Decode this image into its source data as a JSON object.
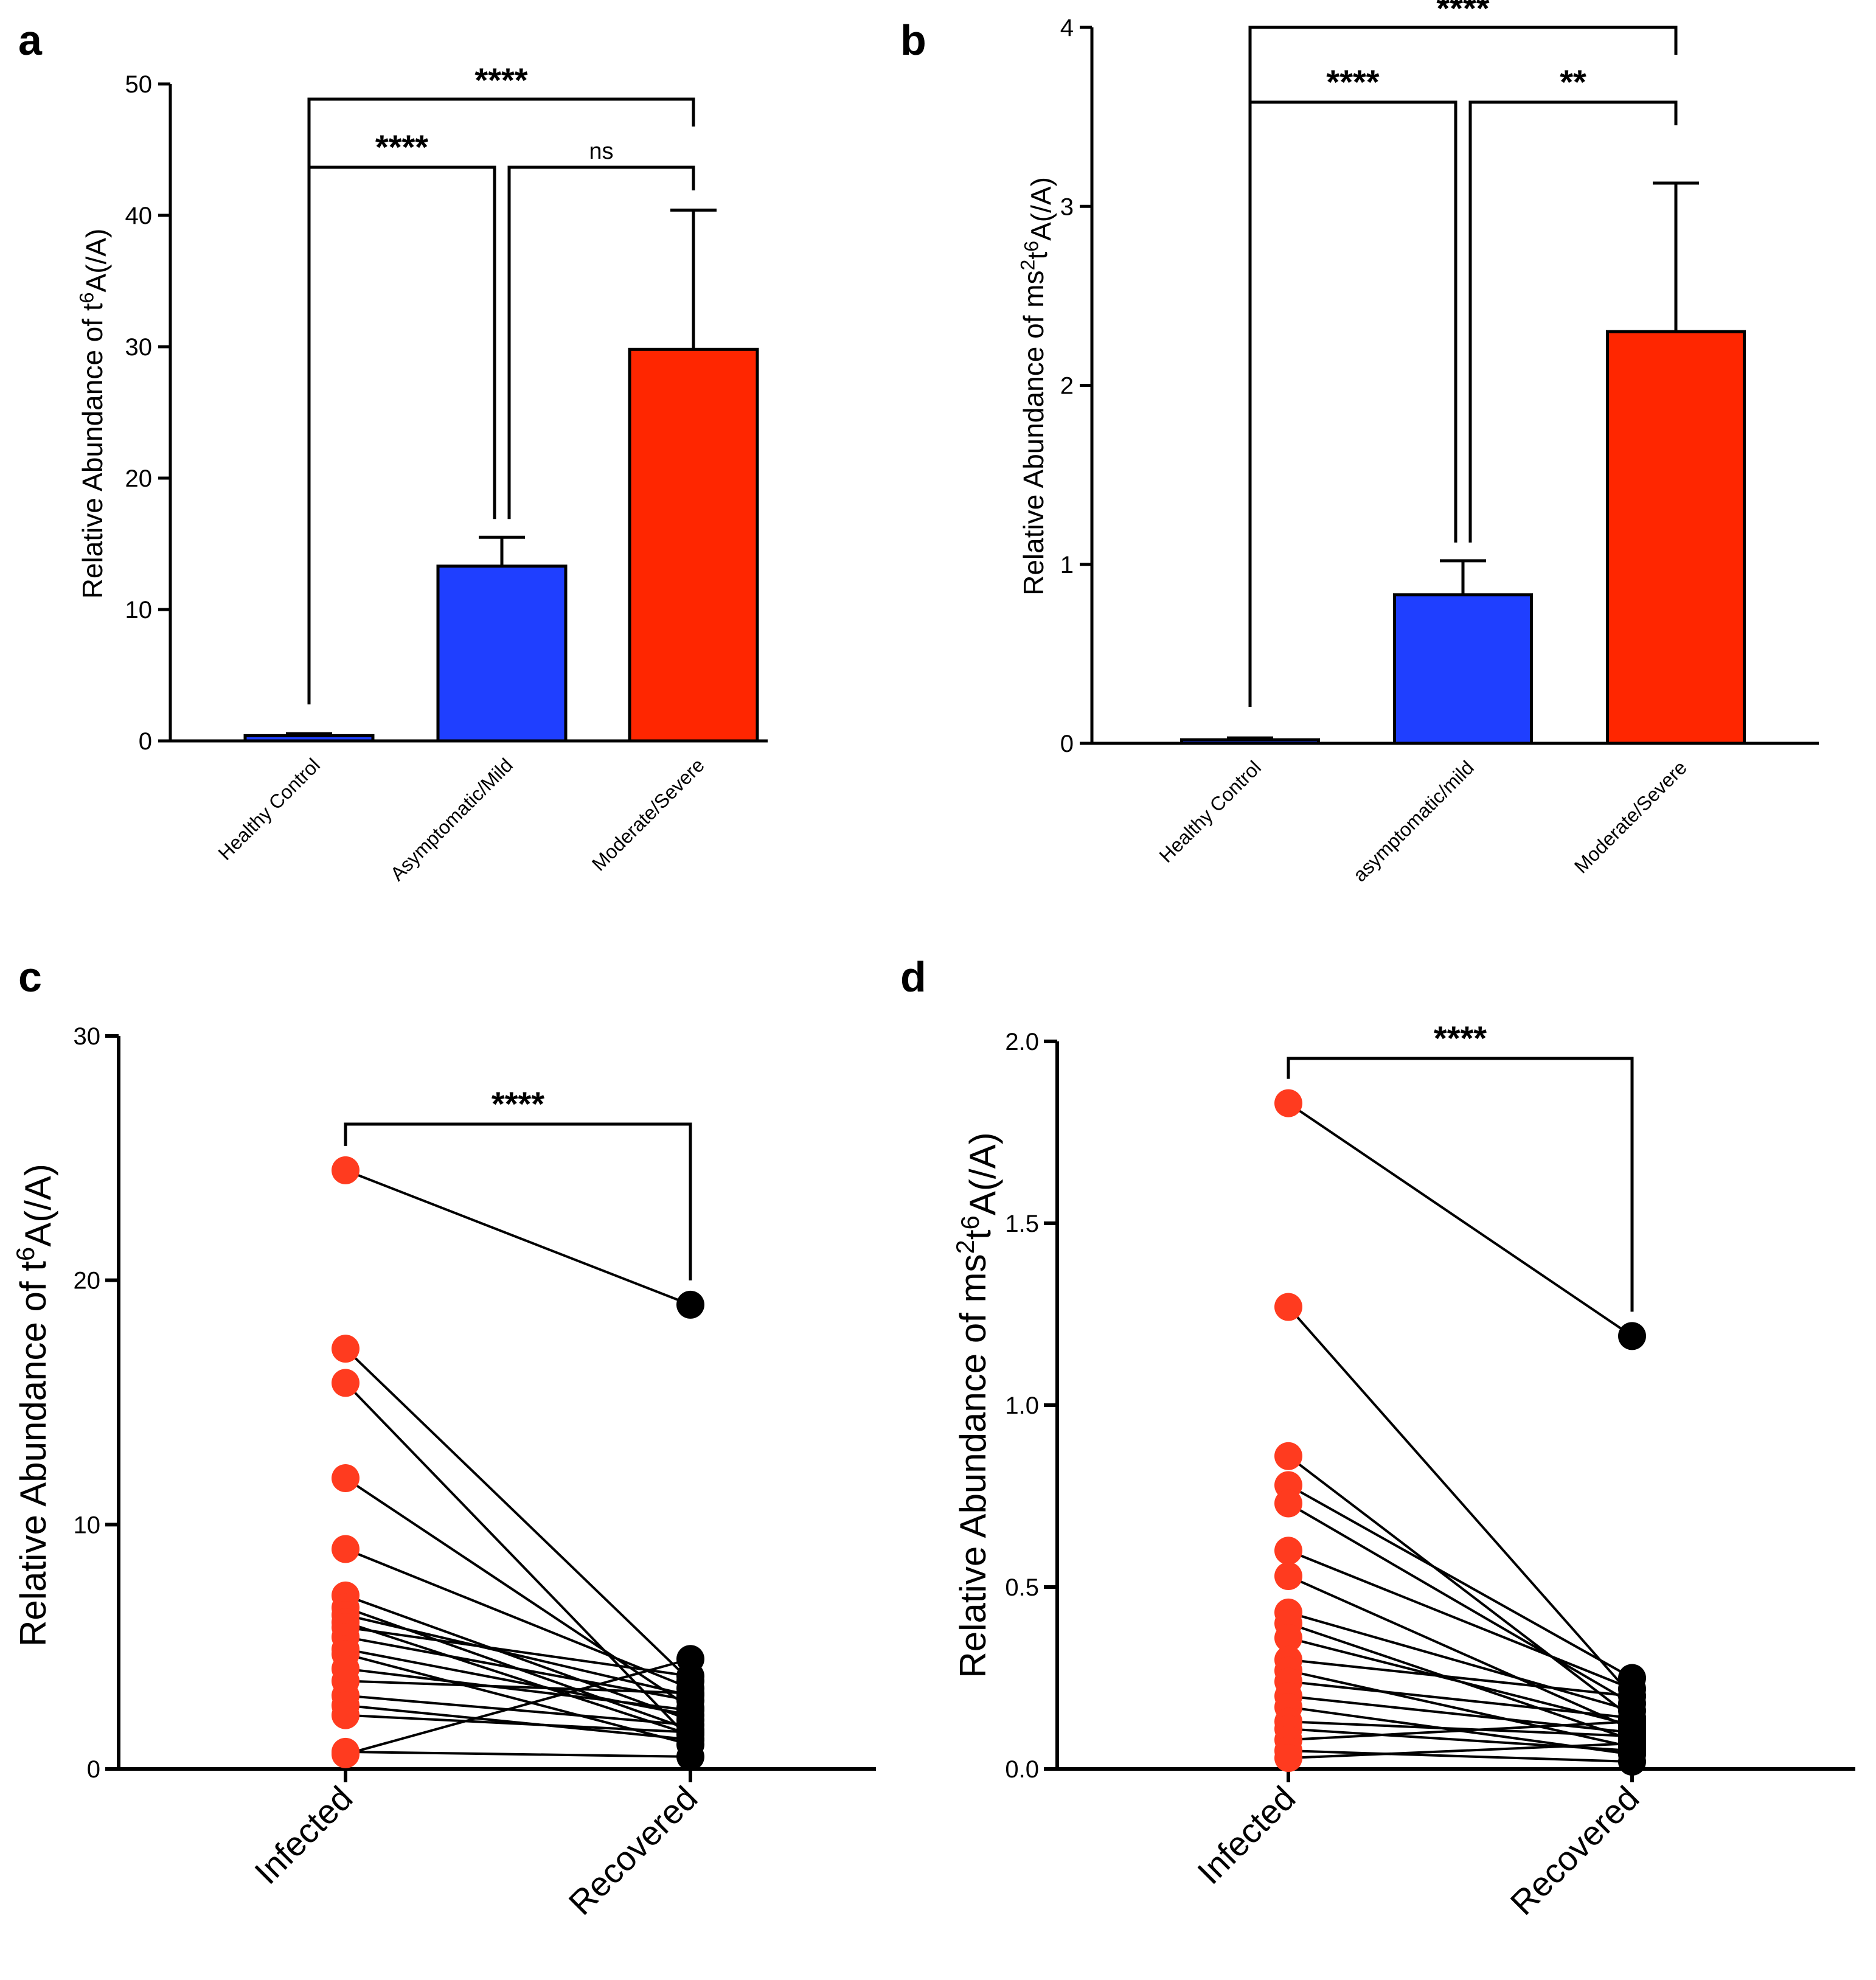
{
  "chart_data": [
    {
      "panel": "a",
      "type": "bar",
      "categories": [
        "Healthy Control",
        "Asymptomatic/Mild",
        "Moderate/Severe"
      ],
      "values": [
        0.4,
        13.3,
        29.8
      ],
      "errors": [
        0.15,
        2.2,
        10.6
      ],
      "colors": [
        "#1f3fff",
        "#1f3fff",
        "#ff2600"
      ],
      "ylabel": {
        "pre": "Relative  Abundance of t",
        "sup": "6",
        "post": "A(/A)"
      },
      "ylim": [
        0,
        50
      ],
      "yticks": [
        "0",
        "10",
        "20",
        "30",
        "40",
        "50"
      ],
      "comparisons": [
        {
          "from": 0,
          "to": 2,
          "label": "****"
        },
        {
          "from": 0,
          "to": 1,
          "label": "****"
        },
        {
          "from": 1,
          "to": 2,
          "label": "ns"
        }
      ]
    },
    {
      "panel": "b",
      "type": "bar",
      "categories": [
        "Healthy Control",
        "asymptomatic/mild",
        "Moderate/Severe"
      ],
      "values": [
        0.02,
        0.83,
        2.3
      ],
      "errors": [
        0.01,
        0.19,
        0.83
      ],
      "colors": [
        "#1f3fff",
        "#1f3fff",
        "#ff2600"
      ],
      "ylabel": {
        "pre": "Relative  Abundance of ms",
        "sup": "2",
        "mid": "t",
        "sup2": "6",
        "post": "A(/A)"
      },
      "ylim": [
        0,
        4
      ],
      "yticks": [
        "0",
        "1",
        "2",
        "3",
        "4"
      ],
      "comparisons": [
        {
          "from": 0,
          "to": 2,
          "label": "****"
        },
        {
          "from": 0,
          "to": 1,
          "label": "****"
        },
        {
          "from": 1,
          "to": 2,
          "label": "**"
        }
      ]
    },
    {
      "panel": "c",
      "type": "scatter",
      "categories": [
        "Infected",
        "Recovered"
      ],
      "pairs": [
        [
          24.5,
          19.0
        ],
        [
          17.2,
          3.6
        ],
        [
          15.8,
          1.2
        ],
        [
          11.9,
          2.5
        ],
        [
          9.0,
          3.3
        ],
        [
          7.1,
          2.0
        ],
        [
          6.6,
          1.6
        ],
        [
          6.3,
          3.0
        ],
        [
          6.0,
          1.4
        ],
        [
          5.8,
          3.8
        ],
        [
          5.4,
          2.8
        ],
        [
          4.9,
          2.2
        ],
        [
          4.7,
          1.0
        ],
        [
          4.1,
          2.4
        ],
        [
          3.6,
          3.1
        ],
        [
          3.0,
          1.8
        ],
        [
          2.6,
          1.2
        ],
        [
          2.2,
          1.5
        ],
        [
          0.7,
          0.5
        ],
        [
          0.6,
          4.5
        ]
      ],
      "infected_color": "#ff3b1f",
      "recovered_color": "#000000",
      "ylabel": {
        "pre": "Relative  Abundance of t",
        "sup": "6",
        "post": "A(/A)"
      },
      "ylim": [
        0,
        30
      ],
      "yticks": [
        "0",
        "10",
        "20",
        "30"
      ],
      "comparison": {
        "label": "****"
      }
    },
    {
      "panel": "d",
      "type": "scatter",
      "categories": [
        "Infected",
        "Recovered"
      ],
      "pairs": [
        [
          1.83,
          1.19
        ],
        [
          1.27,
          0.2
        ],
        [
          0.86,
          0.14
        ],
        [
          0.78,
          0.25
        ],
        [
          0.73,
          0.18
        ],
        [
          0.6,
          0.22
        ],
        [
          0.53,
          0.11
        ],
        [
          0.43,
          0.16
        ],
        [
          0.4,
          0.08
        ],
        [
          0.36,
          0.12
        ],
        [
          0.3,
          0.2
        ],
        [
          0.27,
          0.06
        ],
        [
          0.24,
          0.14
        ],
        [
          0.2,
          0.1
        ],
        [
          0.17,
          0.04
        ],
        [
          0.13,
          0.09
        ],
        [
          0.11,
          0.05
        ],
        [
          0.08,
          0.13
        ],
        [
          0.05,
          0.02
        ],
        [
          0.03,
          0.07
        ]
      ],
      "infected_color": "#ff3b1f",
      "recovered_color": "#000000",
      "ylabel": {
        "pre": "Relative  Abundance of ms",
        "sup": "2",
        "mid": "t",
        "sup2": "6",
        "post": "A(/A)"
      },
      "ylim": [
        0,
        2.0
      ],
      "yticks": [
        "0.0",
        "0.5",
        "1.0",
        "1.5",
        "2.0"
      ],
      "comparison": {
        "label": "****"
      }
    }
  ]
}
